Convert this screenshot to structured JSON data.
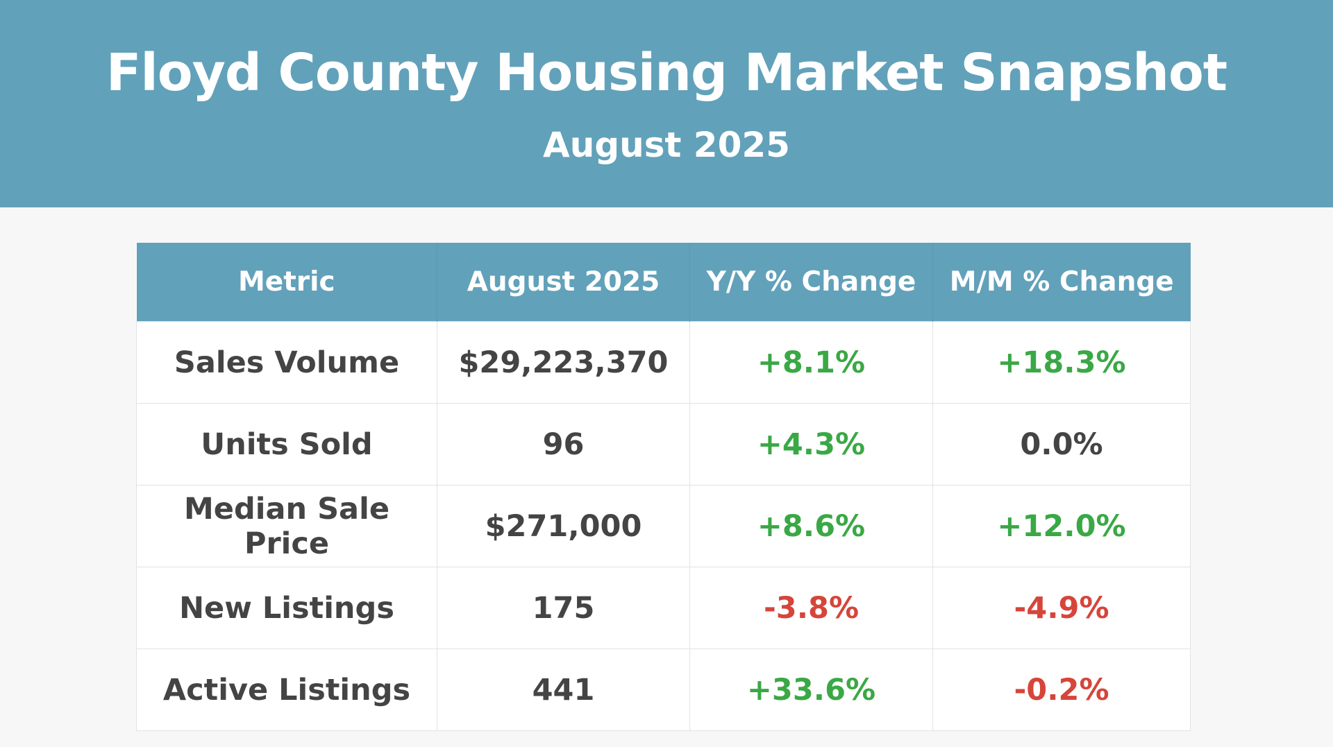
{
  "header": {
    "title": "Floyd County Housing Market Snapshot",
    "subtitle": "August 2025"
  },
  "colors": {
    "accent": "#62a1ba",
    "positive": "#3aa845",
    "negative": "#d6453a"
  },
  "table": {
    "columns": [
      "Metric",
      "August 2025",
      "Y/Y % Change",
      "M/M % Change"
    ],
    "rows": [
      {
        "metric": "Sales Volume",
        "value": "$29,223,370",
        "yy": "+8.1%",
        "mm": "+18.3%",
        "yy_tone": "pos",
        "mm_tone": "pos"
      },
      {
        "metric": "Units Sold",
        "value": "96",
        "yy": "+4.3%",
        "mm": "0.0%",
        "yy_tone": "pos",
        "mm_tone": "neu"
      },
      {
        "metric": "Median Sale Price",
        "value": "$271,000",
        "yy": "+8.6%",
        "mm": "+12.0%",
        "yy_tone": "pos",
        "mm_tone": "pos"
      },
      {
        "metric": "New Listings",
        "value": "175",
        "yy": "-3.8%",
        "mm": "-4.9%",
        "yy_tone": "neg",
        "mm_tone": "neg"
      },
      {
        "metric": "Active Listings",
        "value": "441",
        "yy": "+33.6%",
        "mm": "-0.2%",
        "yy_tone": "pos",
        "mm_tone": "neg"
      }
    ]
  }
}
